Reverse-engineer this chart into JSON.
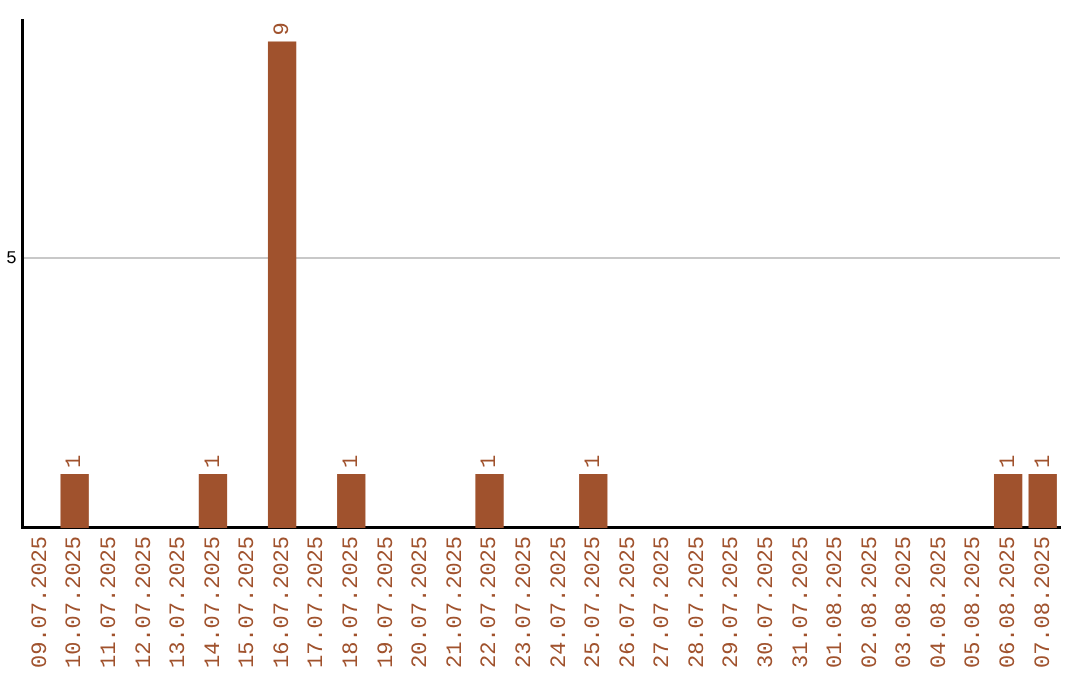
{
  "chart_data": {
    "type": "bar",
    "categories": [
      "09.07.2025",
      "10.07.2025",
      "11.07.2025",
      "12.07.2025",
      "13.07.2025",
      "14.07.2025",
      "15.07.2025",
      "16.07.2025",
      "17.07.2025",
      "18.07.2025",
      "19.07.2025",
      "20.07.2025",
      "21.07.2025",
      "22.07.2025",
      "23.07.2025",
      "24.07.2025",
      "25.07.2025",
      "26.07.2025",
      "27.07.2025",
      "28.07.2025",
      "29.07.2025",
      "30.07.2025",
      "31.07.2025",
      "01.08.2025",
      "02.08.2025",
      "03.08.2025",
      "04.08.2025",
      "05.08.2025",
      "06.08.2025",
      "07.08.2025"
    ],
    "values": [
      0,
      1,
      0,
      0,
      0,
      1,
      0,
      9,
      0,
      1,
      0,
      0,
      0,
      1,
      0,
      0,
      1,
      0,
      0,
      0,
      0,
      0,
      0,
      0,
      0,
      0,
      0,
      0,
      1,
      1
    ],
    "value_labels": [
      null,
      "1",
      null,
      null,
      null,
      "1",
      null,
      "9",
      null,
      "1",
      null,
      null,
      null,
      "1",
      null,
      null,
      "1",
      null,
      null,
      null,
      null,
      null,
      null,
      null,
      null,
      null,
      null,
      null,
      "1",
      "1"
    ],
    "color": "#a0522d",
    "ylim": [
      0,
      9.4
    ],
    "yticks": [
      5
    ],
    "grid": "y",
    "legend": false
  }
}
